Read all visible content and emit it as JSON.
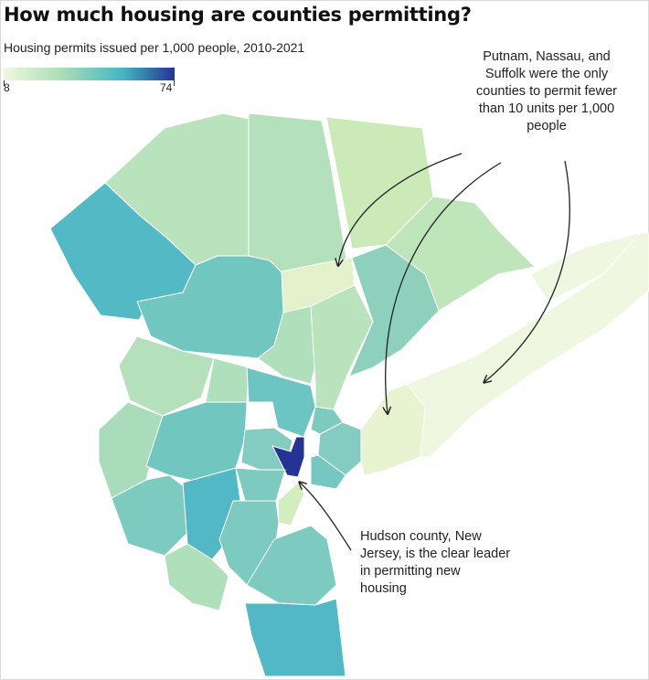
{
  "title": "How much housing are counties permitting?",
  "subtitle": "Housing permits issued per 1,000 people, 2010-2021",
  "legend": {
    "min_label": "8",
    "max_label": "74",
    "min_value": 8,
    "max_value": 74,
    "color_low": "#f1f7df",
    "color_mid": "#5bbfc2",
    "color_high": "#253494"
  },
  "annotations": {
    "top_lines": [
      "Putnam, Nassau, and",
      "Suffolk were the only",
      "counties to permit fewer",
      "than 10 units per 1,000",
      "people"
    ],
    "bottom_lines": [
      "Hudson county, New",
      "Jersey, is the clear leader",
      "in permitting new",
      "housing"
    ]
  },
  "colors": {
    "border": "#ffffff",
    "arrow": "#222222"
  }
}
